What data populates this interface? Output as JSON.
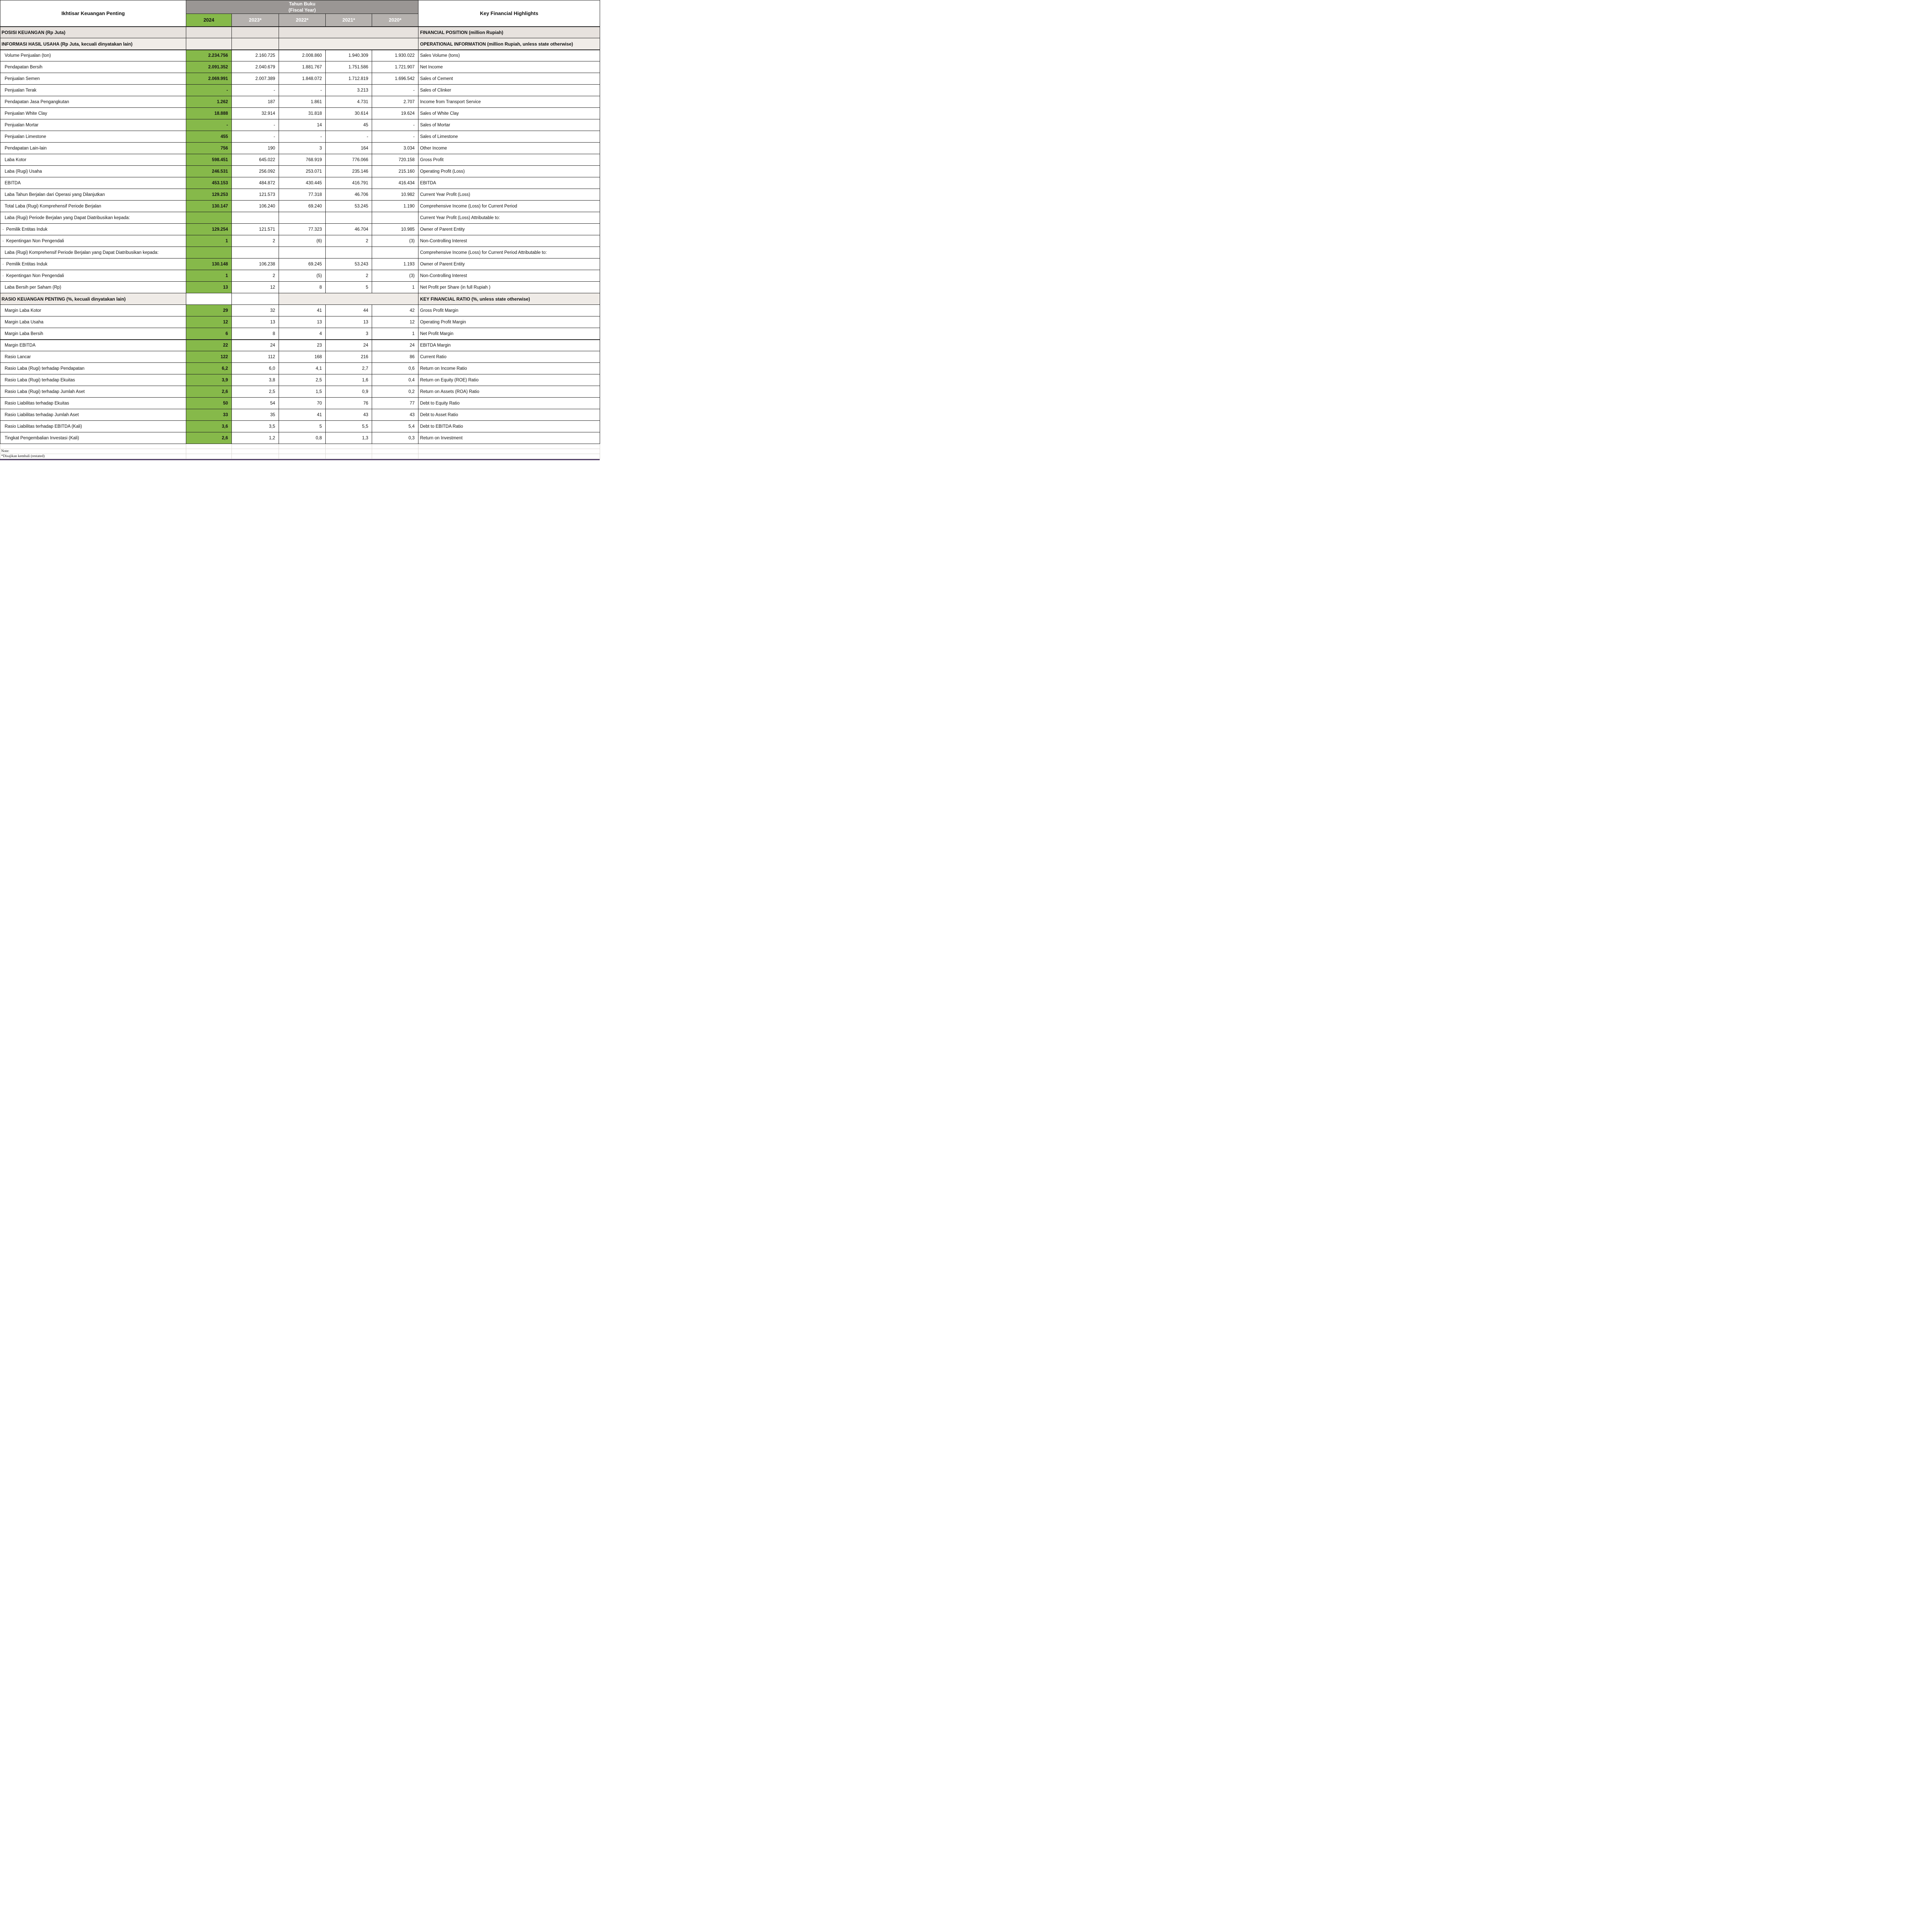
{
  "header": {
    "left_title": "Ikhtisar Keuangan Penting",
    "fiscal_year": "Tahun Buku\n(Fiscal Year)",
    "years": [
      "2024",
      "2023*",
      "2022*",
      "2021*",
      "2020*"
    ],
    "right_title": "Key Financial Highlights"
  },
  "colors": {
    "green": "#86B94A",
    "hgray": "#9A9694",
    "ygray": "#B5B1AE",
    "sa": "#E7E2DE",
    "sb": "#F0ECE8",
    "sc": "#EFEBE7",
    "bdark": "#1E1E1E",
    "blight": "#D9D6D2",
    "purple": "#503E68"
  },
  "table": {
    "rows": [
      {
        "t": "s",
        "shade": "a",
        "l": "POSISI KEUANGAN (Rp Juta)",
        "r": "FINANCIAL POSITION (million Rupiah)"
      },
      {
        "t": "s",
        "shade": "b",
        "thick": true,
        "l": "INFORMASI HASIL USAHA (Rp Juta, kecuali dinyatakan lain)",
        "r": "OPERATIONAL INFORMATION (million Rupiah,  unless state otherwise)"
      },
      {
        "t": "d",
        "l": "Volume Penjualan (ton)",
        "v": [
          "2.234.756",
          "2.160.725",
          "2.008.860",
          "1.940.309",
          "1.930.022"
        ],
        "r": "Sales Volume (tons)"
      },
      {
        "t": "d",
        "l": "Pendapatan Bersih",
        "v": [
          "2.091.352",
          "2.040.679",
          "1.881.767",
          "1.751.586",
          "1.721.907"
        ],
        "r": "Net Income"
      },
      {
        "t": "d",
        "l": "Penjualan Semen",
        "v": [
          "2.069.991",
          "2.007.389",
          "1.848.072",
          "1.712.819",
          "1.696.542"
        ],
        "r": "Sales of Cement"
      },
      {
        "t": "d",
        "l": "Penjualan Terak",
        "v": [
          "-",
          "-",
          "-",
          "3.213",
          "-"
        ],
        "r": "Sales of Clinker"
      },
      {
        "t": "d",
        "l": "Pendapatan Jasa Pengangkutan",
        "v": [
          "1.262",
          "187",
          "1.861",
          "4.731",
          "2.707"
        ],
        "r": "Income from Transport Service"
      },
      {
        "t": "d",
        "l": "Penjualan White Clay",
        "v": [
          "18.888",
          "32.914",
          "31.818",
          "30.614",
          "19.624"
        ],
        "r": "Sales of White Clay"
      },
      {
        "t": "d",
        "l": "Penjualan Mortar",
        "v": [
          "-",
          "-",
          "14",
          "45",
          "-"
        ],
        "r": "Sales of Mortar"
      },
      {
        "t": "d",
        "l": "Penjualan Limestone",
        "v": [
          "455",
          "-",
          "-",
          "-",
          "-"
        ],
        "r": "Sales of Limestone"
      },
      {
        "t": "d",
        "l": "Pendapatan Lain-lain",
        "v": [
          "756",
          "190",
          "3",
          "164",
          "3.034"
        ],
        "r": "Other Income"
      },
      {
        "t": "d",
        "l": "Laba Kotor",
        "v": [
          "598.451",
          "645.022",
          "768.919",
          "776.066",
          "720.158"
        ],
        "r": "Gross Profit"
      },
      {
        "t": "d",
        "l": "Laba (Rugi) Usaha",
        "v": [
          "246.531",
          "256.092",
          "253.071",
          "235.146",
          "215.160"
        ],
        "r": "Operating Profit (Loss)"
      },
      {
        "t": "d",
        "l": "EBITDA",
        "v": [
          "453.153",
          "484.872",
          "430.445",
          "416.791",
          "416.434"
        ],
        "r": "EBITDA"
      },
      {
        "t": "d",
        "l": "Laba Tahun Berjalan dari Operasi yang Dilanjutkan",
        "v": [
          "129.253",
          "121.573",
          "77.318",
          "46.706",
          "10.982"
        ],
        "r": "Current Year Profit (Loss)"
      },
      {
        "t": "d",
        "l": "Total Laba (Rugi) Komprehensif Periode Berjalan",
        "v": [
          "130.147",
          "106.240",
          "69.240",
          "53.245",
          "1.190"
        ],
        "r": "Comprehensive Income (Loss) for Current Period"
      },
      {
        "t": "g",
        "l": "Laba (Rugi) Periode Berjalan yang Dapat Diatribusikan kepada:",
        "r": "Current Year Profit (Loss) Attributable to:"
      },
      {
        "t": "d",
        "bullet": true,
        "l": "Pemilik Entitas Induk",
        "v": [
          "129.254",
          "121.571",
          "77.323",
          "46.704",
          "10.985"
        ],
        "r": "Owner of Parent Entity"
      },
      {
        "t": "d",
        "bullet": true,
        "l": "Kepentingan Non Pengendali",
        "v": [
          "1",
          "2",
          "(6)",
          "2",
          "(3)"
        ],
        "r": "Non-Controlling Interest"
      },
      {
        "t": "g",
        "l": "Laba (Rugi) Komprehensif Periode Berjalan yang Dapat Diatribusikan kepada:",
        "r": "Comprehensive Income (Loss) for Current Period Attributable to:"
      },
      {
        "t": "d",
        "bullet": true,
        "l": "Pemilik Entitas Induk",
        "v": [
          "130.148",
          "106.238",
          "69.245",
          "53.243",
          "1.193"
        ],
        "r": "Owner of Parent Entity"
      },
      {
        "t": "d",
        "bullet": true,
        "l": "Kepentingan Non Pengendali",
        "v": [
          "1",
          "2",
          "(5)",
          "2",
          "(3)"
        ],
        "r": "Non-Controlling Interest"
      },
      {
        "t": "d",
        "l": "Laba Bersih per Saham (Rp)",
        "v": [
          "13",
          "12",
          "8",
          "5",
          "1"
        ],
        "r": "Net Profit per Share (in full Rupiah )"
      },
      {
        "t": "s",
        "shade": "c",
        "wy": true,
        "l": "RASIO KEUANGAN PENTING (%, kecuali dinyatakan lain)",
        "r": "KEY FINANCIAL RATIO (%, unless state otherwise)"
      },
      {
        "t": "d",
        "l": "Margin Laba Kotor",
        "v": [
          "29",
          "32",
          "41",
          "44",
          "42"
        ],
        "r": "Gross Profit Margin"
      },
      {
        "t": "d",
        "l": "Margin Laba Usaha",
        "v": [
          "12",
          "13",
          "13",
          "13",
          "12"
        ],
        "r": "Operating Profit Margin"
      },
      {
        "t": "d",
        "thick": true,
        "l": "Margin Laba Bersih",
        "v": [
          "6",
          "8",
          "4",
          "3",
          "1"
        ],
        "r": "Net Profit Margin"
      },
      {
        "t": "d",
        "l": "Margin EBITDA",
        "v": [
          "22",
          "24",
          "23",
          "24",
          "24"
        ],
        "r": "EBITDA Margin"
      },
      {
        "t": "d",
        "l": "Rasio Lancar",
        "v": [
          "122",
          "112",
          "168",
          "216",
          "86"
        ],
        "r": "Current Ratio"
      },
      {
        "t": "d",
        "l": "Rasio Laba (Rugi) terhadap Pendapatan",
        "v": [
          "6,2",
          "6,0",
          "4,1",
          "2,7",
          "0,6"
        ],
        "r": "Return on Income Ratio"
      },
      {
        "t": "d",
        "l": "Rasio Laba (Rugi) terhadap Ekuitas",
        "v": [
          "3,9",
          "3,8",
          "2,5",
          "1,6",
          "0,4"
        ],
        "r": "Return on Equity (ROE) Ratio"
      },
      {
        "t": "d",
        "l": "Rasio Laba (Rugi) terhadap Jumlah Aset",
        "v": [
          "2,6",
          "2,5",
          "1,5",
          "0,9",
          "0,2"
        ],
        "r": "Return on Assets (ROA) Ratio"
      },
      {
        "t": "d",
        "l": "Rasio Liabilitas terhadap Ekuitas",
        "v": [
          "50",
          "54",
          "70",
          "76",
          "77"
        ],
        "r": "Debt to Equity Ratio"
      },
      {
        "t": "d",
        "l": "Rasio Liabilitas terhadap Jumlah Aset",
        "v": [
          "33",
          "35",
          "41",
          "43",
          "43"
        ],
        "r": "Debt to Asset Ratio"
      },
      {
        "t": "d",
        "l": "Rasio Liabilitas terhadap EBITDA (Kali)",
        "v": [
          "3,6",
          "3,5",
          "5",
          "5,5",
          "5,4"
        ],
        "r": "Debt to EBITDA Ratio"
      },
      {
        "t": "d",
        "l": "Tingkat Pengembalian Investasi (Kali)",
        "v": [
          "2,6",
          "1,2",
          "0,8",
          "1,3",
          "0,3"
        ],
        "r": "Return on Investment"
      },
      {
        "t": "f",
        "l": ""
      },
      {
        "t": "f",
        "l": "Note:"
      },
      {
        "t": "f",
        "l": "*Disajikan kembali (restated)"
      }
    ]
  }
}
